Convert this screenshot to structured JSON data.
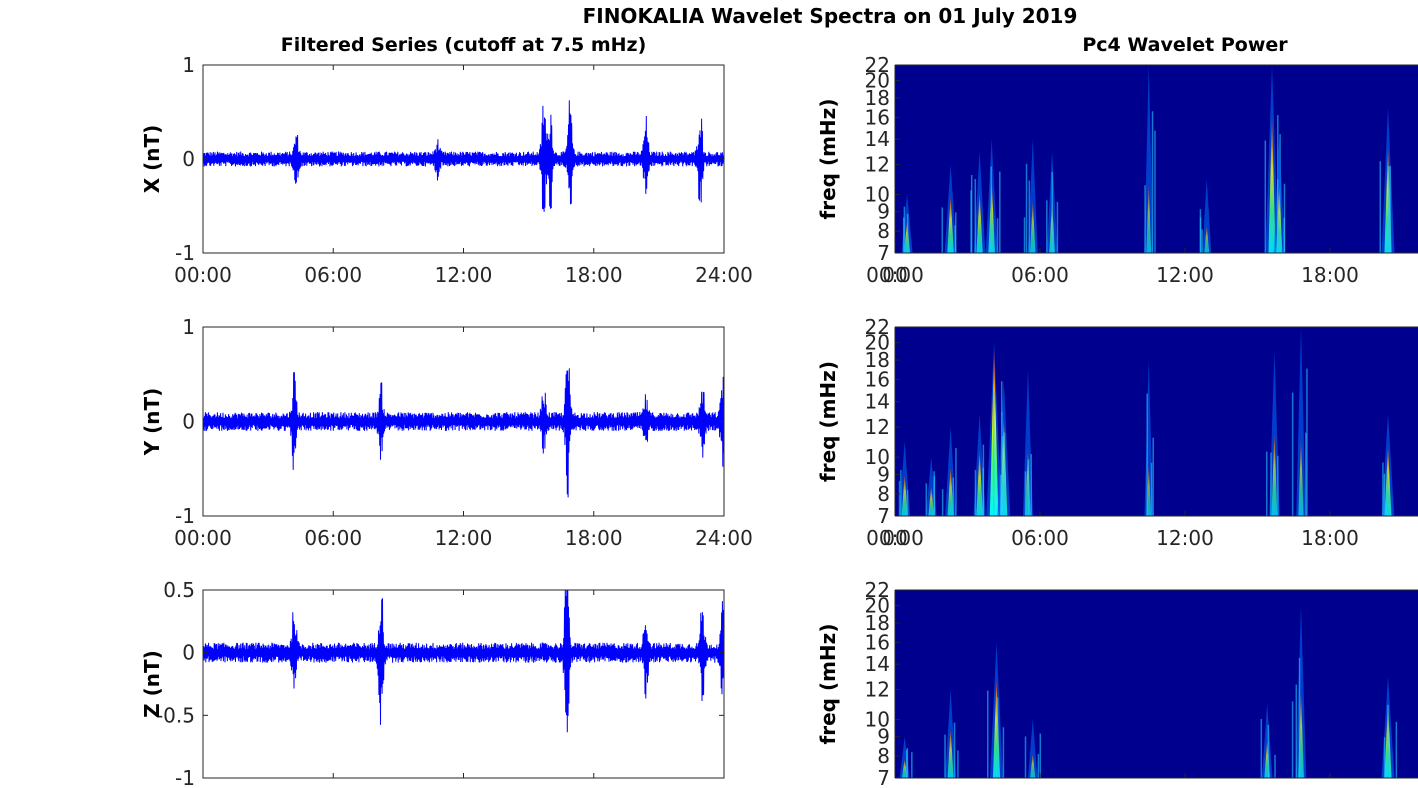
{
  "figure": {
    "title": "FINOKALIA Wavelet Spectra on 01 July 2019",
    "left_title": "Filtered Series (cutoff at 7.5 mHz)",
    "right_title": "Pc4 Wavelet Power"
  },
  "chart_data": [
    {
      "type": "line",
      "name": "X",
      "ylabel": "X (nT)",
      "xlabel": "",
      "xlim": [
        "00:00",
        "24:00"
      ],
      "xticks": [
        "00:00",
        "06:00",
        "12:00",
        "18:00",
        "24:00"
      ],
      "ylim": [
        -1,
        1
      ],
      "yticks": [
        "-1",
        "0",
        "1"
      ],
      "color": "#0000ff",
      "noise_amplitude": 0.08,
      "events": [
        {
          "hour": 4.3,
          "amp": 0.25
        },
        {
          "hour": 10.8,
          "amp": 0.15
        },
        {
          "hour": 15.7,
          "amp": 0.65
        },
        {
          "hour": 16.0,
          "amp": 0.55
        },
        {
          "hour": 16.9,
          "amp": 0.6
        },
        {
          "hour": 20.4,
          "amp": 0.4
        },
        {
          "hour": 22.9,
          "amp": 0.58
        }
      ],
      "grid": false
    },
    {
      "type": "line",
      "name": "Y",
      "ylabel": "Y (nT)",
      "xlabel": "",
      "xlim": [
        "00:00",
        "24:00"
      ],
      "xticks": [
        "00:00",
        "06:00",
        "12:00",
        "18:00",
        "24:00"
      ],
      "ylim": [
        -1,
        1
      ],
      "yticks": [
        "-1",
        "0",
        "1"
      ],
      "color": "#0000ff",
      "noise_amplitude": 0.1,
      "events": [
        {
          "hour": 4.2,
          "amp": 0.5
        },
        {
          "hour": 8.2,
          "amp": 0.35
        },
        {
          "hour": 15.7,
          "amp": 0.3
        },
        {
          "hour": 16.8,
          "amp": 0.75
        },
        {
          "hour": 20.4,
          "amp": 0.2
        },
        {
          "hour": 23.0,
          "amp": 0.35
        },
        {
          "hour": 23.95,
          "amp": 0.5
        }
      ],
      "grid": false
    },
    {
      "type": "line",
      "name": "Z",
      "ylabel": "Z (nT)",
      "xlabel": "",
      "xlim": [
        "00:00",
        "24:00"
      ],
      "xticks": [],
      "ylim": [
        -1,
        0.5
      ],
      "yticks": [
        "-1",
        "-0.5",
        "0",
        "0.5"
      ],
      "color": "#0000ff",
      "noise_amplitude": 0.08,
      "events": [
        {
          "hour": 4.2,
          "amp": 0.35
        },
        {
          "hour": 8.2,
          "amp": 0.58
        },
        {
          "hour": 16.75,
          "amp": 0.85
        },
        {
          "hour": 20.4,
          "amp": 0.3
        },
        {
          "hour": 23.0,
          "amp": 0.37
        },
        {
          "hour": 23.95,
          "amp": 0.35
        }
      ],
      "grid": false
    },
    {
      "type": "heatmap",
      "name": "X wavelet",
      "ylabel": "freq (mHz)",
      "xlim": [
        "00:00",
        "24:00"
      ],
      "xticks": [
        "00:00",
        "06:00",
        "12:00",
        "18:00",
        "00"
      ],
      "ylim": [
        7,
        22
      ],
      "yticks": [
        "7",
        "8",
        "9",
        "10",
        "12",
        "14",
        "16",
        "18",
        "20",
        "22"
      ],
      "colormap": "jet",
      "background": "#00008f",
      "bursts": [
        {
          "hour": 0.5,
          "fmax": 10,
          "power": 0.5
        },
        {
          "hour": 2.3,
          "fmax": 12,
          "power": 0.6
        },
        {
          "hour": 3.5,
          "fmax": 13,
          "power": 0.55
        },
        {
          "hour": 4.0,
          "fmax": 14,
          "power": 0.6
        },
        {
          "hour": 5.7,
          "fmax": 14,
          "power": 0.4
        },
        {
          "hour": 6.5,
          "fmax": 13,
          "power": 0.45
        },
        {
          "hour": 10.5,
          "fmax": 22,
          "power": 0.3
        },
        {
          "hour": 12.9,
          "fmax": 11,
          "power": 0.3
        },
        {
          "hour": 15.6,
          "fmax": 22,
          "power": 0.7
        },
        {
          "hour": 15.9,
          "fmax": 14,
          "power": 0.55
        },
        {
          "hour": 20.4,
          "fmax": 17,
          "power": 0.7
        },
        {
          "hour": 22.9,
          "fmax": 16,
          "power": 0.75
        }
      ]
    },
    {
      "type": "heatmap",
      "name": "Y wavelet",
      "ylabel": "freq (mHz)",
      "xlim": [
        "00:00",
        "24:00"
      ],
      "xticks": [
        "00:00",
        "06:00",
        "12:00",
        "18:00",
        "00"
      ],
      "ylim": [
        7,
        22
      ],
      "yticks": [
        "7",
        "8",
        "9",
        "10",
        "12",
        "14",
        "16",
        "18",
        "20",
        "22"
      ],
      "colormap": "jet",
      "background": "#00008f",
      "bursts": [
        {
          "hour": 0.4,
          "fmax": 11,
          "power": 0.5
        },
        {
          "hour": 1.5,
          "fmax": 10,
          "power": 0.45
        },
        {
          "hour": 2.3,
          "fmax": 12,
          "power": 0.5
        },
        {
          "hour": 3.5,
          "fmax": 13,
          "power": 0.6
        },
        {
          "hour": 4.1,
          "fmax": 20,
          "power": 0.95
        },
        {
          "hour": 4.5,
          "fmax": 16,
          "power": 0.7
        },
        {
          "hour": 5.5,
          "fmax": 17,
          "power": 0.4
        },
        {
          "hour": 10.5,
          "fmax": 18,
          "power": 0.25
        },
        {
          "hour": 15.7,
          "fmax": 19,
          "power": 0.45
        },
        {
          "hour": 16.8,
          "fmax": 22,
          "power": 0.35
        },
        {
          "hour": 20.4,
          "fmax": 13,
          "power": 0.65
        },
        {
          "hour": 22.9,
          "fmax": 12,
          "power": 0.85
        }
      ]
    },
    {
      "type": "heatmap",
      "name": "Z wavelet",
      "ylabel": "freq (mHz)",
      "xlim": [
        "00:00",
        "24:00"
      ],
      "xticks": [],
      "ylim": [
        7,
        22
      ],
      "yticks": [
        "7",
        "8",
        "9",
        "10",
        "12",
        "14",
        "16",
        "18",
        "20",
        "22"
      ],
      "colormap": "jet",
      "background": "#00008f",
      "bursts": [
        {
          "hour": 0.4,
          "fmax": 9,
          "power": 0.4
        },
        {
          "hour": 2.3,
          "fmax": 12,
          "power": 0.5
        },
        {
          "hour": 4.2,
          "fmax": 16,
          "power": 0.7
        },
        {
          "hour": 5.7,
          "fmax": 10,
          "power": 0.35
        },
        {
          "hour": 15.4,
          "fmax": 11,
          "power": 0.45
        },
        {
          "hour": 16.8,
          "fmax": 20,
          "power": 0.45
        },
        {
          "hour": 20.4,
          "fmax": 13,
          "power": 0.7
        },
        {
          "hour": 22.9,
          "fmax": 13,
          "power": 0.75
        }
      ]
    }
  ]
}
